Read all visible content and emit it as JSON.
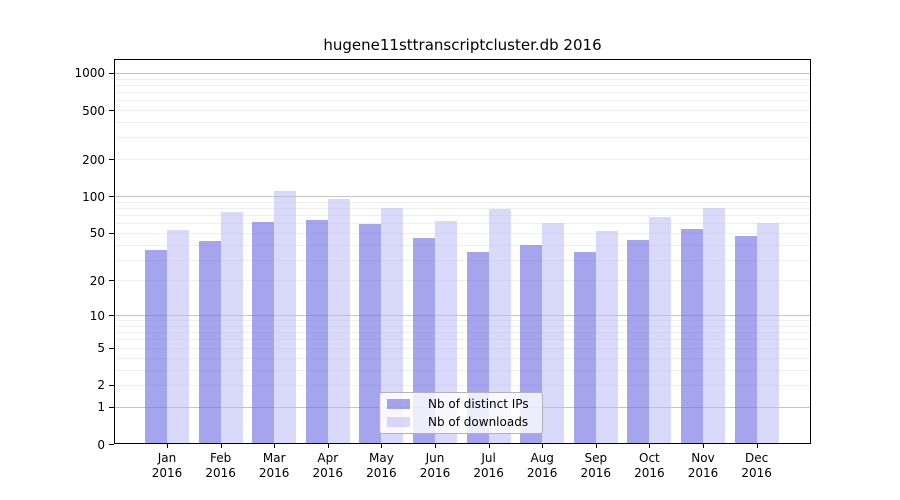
{
  "chart_data": {
    "type": "bar",
    "title": "hugene11sttranscriptcluster.db 2016",
    "xlabel": "",
    "ylabel": "",
    "year": "2016",
    "categories": [
      "Jan",
      "Feb",
      "Mar",
      "Apr",
      "May",
      "Jun",
      "Jul",
      "Aug",
      "Sep",
      "Oct",
      "Nov",
      "Dec"
    ],
    "series": [
      {
        "name": "Nb of distinct IPs",
        "color": "rgba(110,110,228,0.62)",
        "solid_color": "#a5a5ee",
        "values": [
          36,
          43,
          61,
          64,
          59,
          45,
          35,
          40,
          35,
          44,
          54,
          47
        ]
      },
      {
        "name": "Nb of downloads",
        "color": "rgba(186,186,245,0.55)",
        "solid_color": "#d9d9f9",
        "values": [
          53,
          74,
          110,
          95,
          80,
          62,
          79,
          60,
          52,
          68,
          80,
          60
        ]
      }
    ],
    "y_ticks": [
      0,
      1,
      2,
      5,
      10,
      20,
      50,
      100,
      200,
      500,
      1000
    ],
    "y_scale": "log10(1+x)",
    "ylim": [
      0,
      1000
    ],
    "grid": "horizontal, minor log lines faint, decade lines darker",
    "legend_position": "inside-bottom-center",
    "grid_minor_color": "#efefef",
    "grid_major_color": "#c4c4c4",
    "axis_color": "#000000"
  }
}
